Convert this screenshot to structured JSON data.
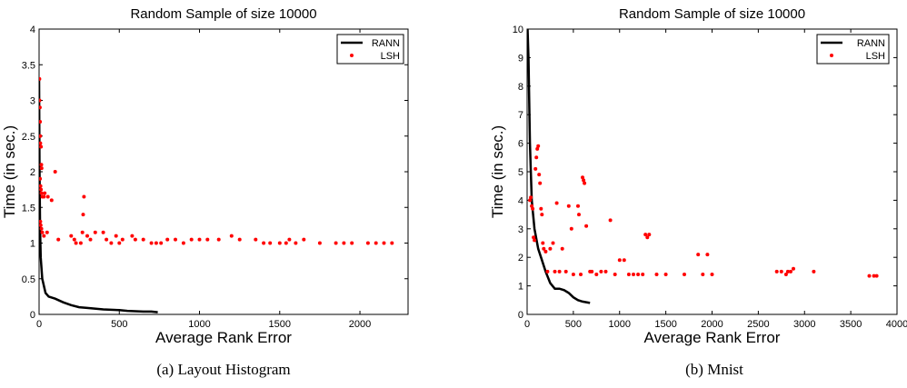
{
  "chart_data": [
    {
      "type": "scatter",
      "title": "Random Sample of size 10000",
      "xlabel": "Average Rank Error",
      "ylabel": "Time (in sec.)",
      "caption": "(a) Layout Histogram",
      "xlim": [
        0,
        2300
      ],
      "ylim": [
        0,
        4
      ],
      "xticks": [
        0,
        500,
        1000,
        1500,
        2000
      ],
      "yticks": [
        0,
        0.5,
        1,
        1.5,
        2,
        2.5,
        3,
        3.5,
        4
      ],
      "grid": false,
      "legend_position": "top-right",
      "series": [
        {
          "name": "RANN",
          "kind": "line",
          "color": "#000000",
          "points": [
            [
              0,
              3.3
            ],
            [
              3,
              2.0
            ],
            [
              6,
              1.2
            ],
            [
              10,
              0.8
            ],
            [
              20,
              0.5
            ],
            [
              40,
              0.3
            ],
            [
              60,
              0.25
            ],
            [
              100,
              0.22
            ],
            [
              150,
              0.17
            ],
            [
              200,
              0.13
            ],
            [
              250,
              0.1
            ],
            [
              300,
              0.09
            ],
            [
              400,
              0.07
            ],
            [
              500,
              0.06
            ],
            [
              550,
              0.05
            ],
            [
              650,
              0.04
            ],
            [
              700,
              0.04
            ],
            [
              740,
              0.03
            ]
          ]
        },
        {
          "name": "LSH",
          "kind": "scatter",
          "color": "#ff0000",
          "points": [
            [
              2,
              3.3
            ],
            [
              3,
              3.0
            ],
            [
              5,
              2.9
            ],
            [
              6,
              2.7
            ],
            [
              7,
              2.5
            ],
            [
              8,
              2.4
            ],
            [
              12,
              2.35
            ],
            [
              14,
              2.1
            ],
            [
              16,
              2.05
            ],
            [
              6,
              1.9
            ],
            [
              9,
              1.8
            ],
            [
              12,
              1.75
            ],
            [
              15,
              1.7
            ],
            [
              20,
              1.65
            ],
            [
              30,
              1.65
            ],
            [
              35,
              1.7
            ],
            [
              55,
              1.65
            ],
            [
              78,
              1.6
            ],
            [
              100,
              2.0
            ],
            [
              8,
              1.3
            ],
            [
              10,
              1.25
            ],
            [
              15,
              1.2
            ],
            [
              20,
              1.15
            ],
            [
              30,
              1.1
            ],
            [
              50,
              1.15
            ],
            [
              120,
              1.05
            ],
            [
              200,
              1.1
            ],
            [
              220,
              1.05
            ],
            [
              230,
              1.0
            ],
            [
              260,
              1.0
            ],
            [
              270,
              1.15
            ],
            [
              275,
              1.4
            ],
            [
              280,
              1.65
            ],
            [
              300,
              1.1
            ],
            [
              320,
              1.05
            ],
            [
              350,
              1.15
            ],
            [
              400,
              1.15
            ],
            [
              420,
              1.05
            ],
            [
              450,
              1.0
            ],
            [
              480,
              1.1
            ],
            [
              500,
              1.0
            ],
            [
              520,
              1.05
            ],
            [
              580,
              1.1
            ],
            [
              600,
              1.05
            ],
            [
              650,
              1.05
            ],
            [
              700,
              1.0
            ],
            [
              730,
              1.0
            ],
            [
              760,
              1.0
            ],
            [
              800,
              1.05
            ],
            [
              850,
              1.05
            ],
            [
              900,
              1.0
            ],
            [
              950,
              1.05
            ],
            [
              1000,
              1.05
            ],
            [
              1050,
              1.05
            ],
            [
              1120,
              1.05
            ],
            [
              1200,
              1.1
            ],
            [
              1250,
              1.05
            ],
            [
              1350,
              1.05
            ],
            [
              1400,
              1.0
            ],
            [
              1440,
              1.0
            ],
            [
              1500,
              1.0
            ],
            [
              1540,
              1.0
            ],
            [
              1560,
              1.05
            ],
            [
              1600,
              1.0
            ],
            [
              1650,
              1.05
            ],
            [
              1750,
              1.0
            ],
            [
              1850,
              1.0
            ],
            [
              1900,
              1.0
            ],
            [
              1950,
              1.0
            ],
            [
              2050,
              1.0
            ],
            [
              2100,
              1.0
            ],
            [
              2150,
              1.0
            ],
            [
              2200,
              1.0
            ]
          ]
        }
      ]
    },
    {
      "type": "scatter",
      "title": "Random Sample of size 10000",
      "xlabel": "Average Rank Error",
      "ylabel": "Time (in sec.)",
      "caption": "(b) Mnist",
      "xlim": [
        0,
        4000
      ],
      "ylim": [
        0,
        10
      ],
      "xticks": [
        0,
        500,
        1000,
        1500,
        2000,
        2500,
        3000,
        3500,
        4000
      ],
      "yticks": [
        0,
        1,
        2,
        3,
        4,
        5,
        6,
        7,
        8,
        9,
        10
      ],
      "grid": false,
      "legend_position": "top-right",
      "series": [
        {
          "name": "RANN",
          "kind": "line",
          "color": "#000000",
          "points": [
            [
              5,
              10
            ],
            [
              15,
              9
            ],
            [
              30,
              6
            ],
            [
              50,
              4
            ],
            [
              80,
              3
            ],
            [
              120,
              2.3
            ],
            [
              150,
              2
            ],
            [
              200,
              1.5
            ],
            [
              250,
              1.1
            ],
            [
              300,
              0.9
            ],
            [
              350,
              0.9
            ],
            [
              400,
              0.85
            ],
            [
              450,
              0.75
            ],
            [
              500,
              0.6
            ],
            [
              550,
              0.5
            ],
            [
              600,
              0.45
            ],
            [
              680,
              0.4
            ]
          ]
        },
        {
          "name": "LSH",
          "kind": "scatter",
          "color": "#ff0000",
          "points": [
            [
              30,
              4.0
            ],
            [
              40,
              4.1
            ],
            [
              50,
              3.8
            ],
            [
              60,
              3.7
            ],
            [
              70,
              2.7
            ],
            [
              80,
              2.6
            ],
            [
              90,
              5.1
            ],
            [
              100,
              5.5
            ],
            [
              110,
              5.8
            ],
            [
              120,
              5.9
            ],
            [
              130,
              4.9
            ],
            [
              140,
              4.6
            ],
            [
              150,
              3.7
            ],
            [
              160,
              3.5
            ],
            [
              170,
              2.5
            ],
            [
              180,
              2.3
            ],
            [
              200,
              2.2
            ],
            [
              220,
              1.5
            ],
            [
              250,
              2.3
            ],
            [
              280,
              2.5
            ],
            [
              300,
              1.5
            ],
            [
              320,
              3.9
            ],
            [
              350,
              1.5
            ],
            [
              380,
              2.3
            ],
            [
              420,
              1.5
            ],
            [
              450,
              3.8
            ],
            [
              480,
              3.0
            ],
            [
              500,
              1.4
            ],
            [
              550,
              3.8
            ],
            [
              560,
              3.5
            ],
            [
              580,
              1.4
            ],
            [
              600,
              4.8
            ],
            [
              610,
              4.7
            ],
            [
              620,
              4.6
            ],
            [
              640,
              3.1
            ],
            [
              680,
              1.5
            ],
            [
              700,
              1.5
            ],
            [
              750,
              1.4
            ],
            [
              800,
              1.5
            ],
            [
              850,
              1.5
            ],
            [
              900,
              3.3
            ],
            [
              950,
              1.4
            ],
            [
              1000,
              1.9
            ],
            [
              1050,
              1.9
            ],
            [
              1100,
              1.4
            ],
            [
              1150,
              1.4
            ],
            [
              1200,
              1.4
            ],
            [
              1250,
              1.4
            ],
            [
              1280,
              2.8
            ],
            [
              1300,
              2.7
            ],
            [
              1320,
              2.8
            ],
            [
              1400,
              1.4
            ],
            [
              1500,
              1.4
            ],
            [
              1700,
              1.4
            ],
            [
              1850,
              2.1
            ],
            [
              1900,
              1.4
            ],
            [
              1950,
              2.1
            ],
            [
              2000,
              1.4
            ],
            [
              2700,
              1.5
            ],
            [
              2750,
              1.5
            ],
            [
              2800,
              1.4
            ],
            [
              2820,
              1.5
            ],
            [
              2850,
              1.5
            ],
            [
              2880,
              1.6
            ],
            [
              3100,
              1.5
            ],
            [
              3700,
              1.35
            ],
            [
              3750,
              1.35
            ],
            [
              3780,
              1.35
            ]
          ]
        }
      ]
    }
  ]
}
